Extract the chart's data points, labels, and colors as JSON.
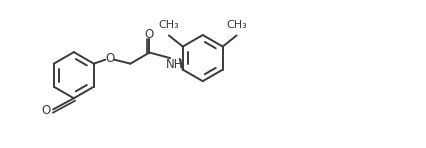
{
  "line_color": "#3a3a3a",
  "bg_color": "#ffffff",
  "line_width": 1.4,
  "font_size": 8.5,
  "figsize": [
    4.26,
    1.48
  ],
  "dpi": 100,
  "xlim": [
    0,
    10.5
  ],
  "ylim": [
    0,
    3.5
  ]
}
